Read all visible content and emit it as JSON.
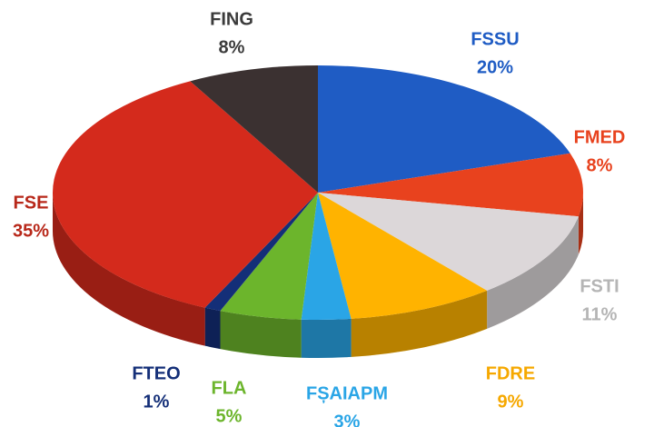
{
  "chart_data": {
    "type": "pie",
    "categories": [
      "FSSU",
      "FMED",
      "FSTI",
      "FDRE",
      "FȘAIAPM",
      "FLA",
      "FTEO",
      "FSE",
      "FING"
    ],
    "values": [
      20,
      8,
      11,
      9,
      3,
      5,
      1,
      35,
      8
    ],
    "value_labels": [
      "20%",
      "8%",
      "11%",
      "9%",
      "3%",
      "5%",
      "1%",
      "35%",
      "8%"
    ],
    "colors": [
      "#1f5cc4",
      "#e8421e",
      "#dcd7d9",
      "#ffb300",
      "#2aa5e6",
      "#6cb52c",
      "#142f78",
      "#d42a1c",
      "#3b3131"
    ],
    "label_colors": [
      "#1f5cc4",
      "#e8421e",
      "#b5b5b5",
      "#f6a800",
      "#2aa5e6",
      "#6cb52c",
      "#142f78",
      "#b8281a",
      "#3b3b3b"
    ]
  }
}
